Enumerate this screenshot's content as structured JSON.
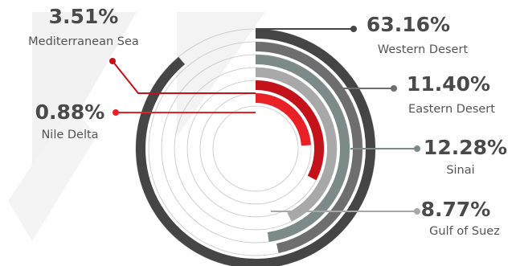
{
  "chart_data": {
    "type": "radial-bar",
    "title": "",
    "series": [
      {
        "name": "Western Desert",
        "label": "63.16%",
        "value": 63.16,
        "color": "#454545"
      },
      {
        "name": "Eastern Desert",
        "label": "11.40%",
        "value": 11.4,
        "color": "#6e6e6e"
      },
      {
        "name": "Sinai",
        "label": "12.28%",
        "value": 12.28,
        "color": "#7c8a8a"
      },
      {
        "name": "Gulf of Suez",
        "label": "8.77%",
        "value": 8.77,
        "color": "#a8a8a8"
      },
      {
        "name": "Mediterranean Sea",
        "label": "3.51%",
        "value": 3.51,
        "color": "#c4121a"
      },
      {
        "name": "Nile Delta",
        "label": "0.88%",
        "value": 0.88,
        "color": "#ea2027"
      }
    ]
  }
}
